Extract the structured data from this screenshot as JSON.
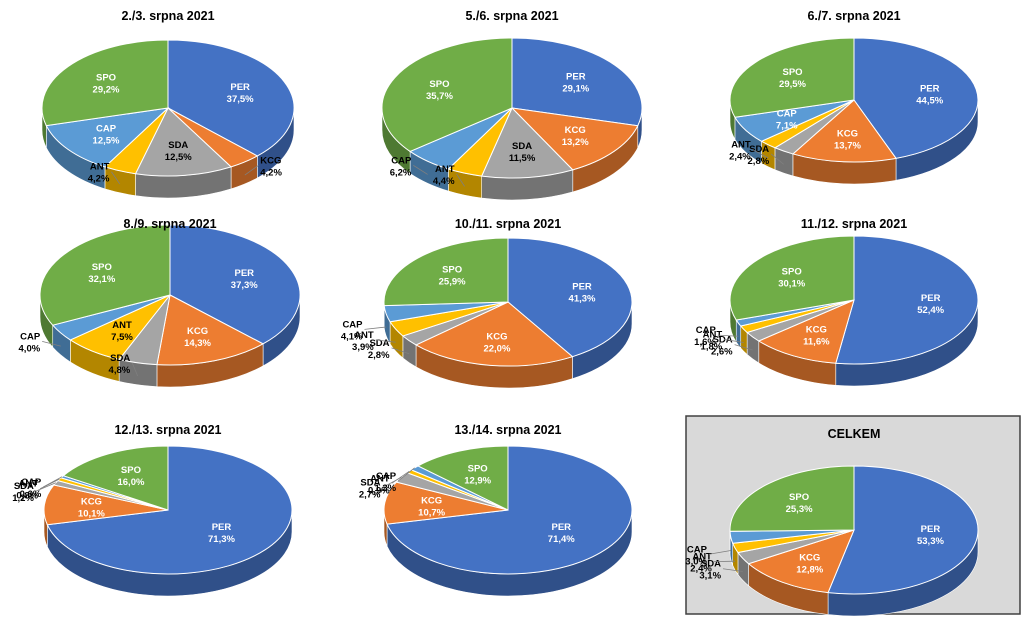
{
  "colors": {
    "PER": "#4472C4",
    "KCG": "#ED7D31",
    "SDA": "#A5A5A5",
    "ANT": "#FFC000",
    "CAP": "#5B9BD5",
    "SPO": "#70AD47",
    "panel_bg": "#D9D9D9",
    "panel_border": "#404040"
  },
  "chart_data": [
    {
      "type": "pie",
      "title": "2./3. srpna 2021",
      "slices": [
        {
          "label": "PER",
          "value": 37.5,
          "text": "37,5%"
        },
        {
          "label": "KCG",
          "value": 4.2,
          "text": "4,2%"
        },
        {
          "label": "SDA",
          "value": 12.5,
          "text": "12,5%"
        },
        {
          "label": "ANT",
          "value": 4.2,
          "text": "4,2%"
        },
        {
          "label": "CAP",
          "value": 12.5,
          "text": "12,5%"
        },
        {
          "label": "SPO",
          "value": 29.2,
          "text": "29,2%"
        }
      ]
    },
    {
      "type": "pie",
      "title": "5./6. srpna 2021",
      "slices": [
        {
          "label": "PER",
          "value": 29.1,
          "text": "29,1%"
        },
        {
          "label": "KCG",
          "value": 13.2,
          "text": "13,2%"
        },
        {
          "label": "SDA",
          "value": 11.5,
          "text": "11,5%"
        },
        {
          "label": "ANT",
          "value": 4.4,
          "text": "4,4%"
        },
        {
          "label": "CAP",
          "value": 6.2,
          "text": "6,2%"
        },
        {
          "label": "SPO",
          "value": 35.7,
          "text": "35,7%"
        }
      ]
    },
    {
      "type": "pie",
      "title": "6./7. srpna 2021",
      "slices": [
        {
          "label": "PER",
          "value": 44.5,
          "text": "44,5%"
        },
        {
          "label": "KCG",
          "value": 13.7,
          "text": "13,7%"
        },
        {
          "label": "SDA",
          "value": 2.8,
          "text": "2,8%"
        },
        {
          "label": "ANT",
          "value": 2.4,
          "text": "2,4%"
        },
        {
          "label": "CAP",
          "value": 7.1,
          "text": "7,1%"
        },
        {
          "label": "SPO",
          "value": 29.5,
          "text": "29,5%"
        }
      ]
    },
    {
      "type": "pie",
      "title": "8./9. srpna 2021",
      "slices": [
        {
          "label": "PER",
          "value": 37.3,
          "text": "37,3%"
        },
        {
          "label": "KCG",
          "value": 14.3,
          "text": "14,3%"
        },
        {
          "label": "SDA",
          "value": 4.8,
          "text": "4,8%"
        },
        {
          "label": "ANT",
          "value": 7.5,
          "text": "7,5%"
        },
        {
          "label": "CAP",
          "value": 4.0,
          "text": "4,0%"
        },
        {
          "label": "SPO",
          "value": 32.1,
          "text": "32,1%"
        }
      ]
    },
    {
      "type": "pie",
      "title": "10./11. srpna 2021",
      "slices": [
        {
          "label": "PER",
          "value": 41.3,
          "text": "41,3%"
        },
        {
          "label": "KCG",
          "value": 22.0,
          "text": "22,0%"
        },
        {
          "label": "SDA",
          "value": 2.8,
          "text": "2,8%"
        },
        {
          "label": "ANT",
          "value": 3.9,
          "text": "3,9%"
        },
        {
          "label": "CAP",
          "value": 4.1,
          "text": "4,1%"
        },
        {
          "label": "SPO",
          "value": 25.9,
          "text": "25,9%"
        }
      ]
    },
    {
      "type": "pie",
      "title": "11./12. srpna 2021",
      "slices": [
        {
          "label": "PER",
          "value": 52.4,
          "text": "52,4%"
        },
        {
          "label": "KCG",
          "value": 11.6,
          "text": "11,6%"
        },
        {
          "label": "SDA",
          "value": 2.6,
          "text": "2,6%"
        },
        {
          "label": "ANT",
          "value": 1.8,
          "text": "1,8%"
        },
        {
          "label": "CAP",
          "value": 1.6,
          "text": "1,6%"
        },
        {
          "label": "SPO",
          "value": 30.1,
          "text": "30,1%"
        }
      ]
    },
    {
      "type": "pie",
      "title": "12./13. srpna 2021",
      "slices": [
        {
          "label": "PER",
          "value": 71.3,
          "text": "71,3%"
        },
        {
          "label": "KCG",
          "value": 10.1,
          "text": "10,1%"
        },
        {
          "label": "SDA",
          "value": 1.2,
          "text": "1,2%"
        },
        {
          "label": "ANT",
          "value": 0.8,
          "text": "0,8%"
        },
        {
          "label": "CAP",
          "value": 0.6,
          "text": "0,6%"
        },
        {
          "label": "SPO",
          "value": 16.0,
          "text": "16,0%"
        }
      ]
    },
    {
      "type": "pie",
      "title": "13./14. srpna 2021",
      "slices": [
        {
          "label": "PER",
          "value": 71.4,
          "text": "71,4%"
        },
        {
          "label": "KCG",
          "value": 10.7,
          "text": "10,7%"
        },
        {
          "label": "SDA",
          "value": 2.7,
          "text": "2,7%"
        },
        {
          "label": "ANT",
          "value": 0.9,
          "text": "0,9%"
        },
        {
          "label": "CAP",
          "value": 1.3,
          "text": "1,3%"
        },
        {
          "label": "SPO",
          "value": 12.9,
          "text": "12,9%"
        }
      ]
    },
    {
      "type": "pie",
      "title": "CELKEM",
      "slices": [
        {
          "label": "PER",
          "value": 53.3,
          "text": "53,3%"
        },
        {
          "label": "KCG",
          "value": 12.8,
          "text": "12,8%"
        },
        {
          "label": "SDA",
          "value": 3.1,
          "text": "3,1%"
        },
        {
          "label": "ANT",
          "value": 2.4,
          "text": "2,4%"
        },
        {
          "label": "CAP",
          "value": 3.0,
          "text": "3,0%"
        },
        {
          "label": "SPO",
          "value": 25.3,
          "text": "25,3%"
        }
      ]
    }
  ]
}
